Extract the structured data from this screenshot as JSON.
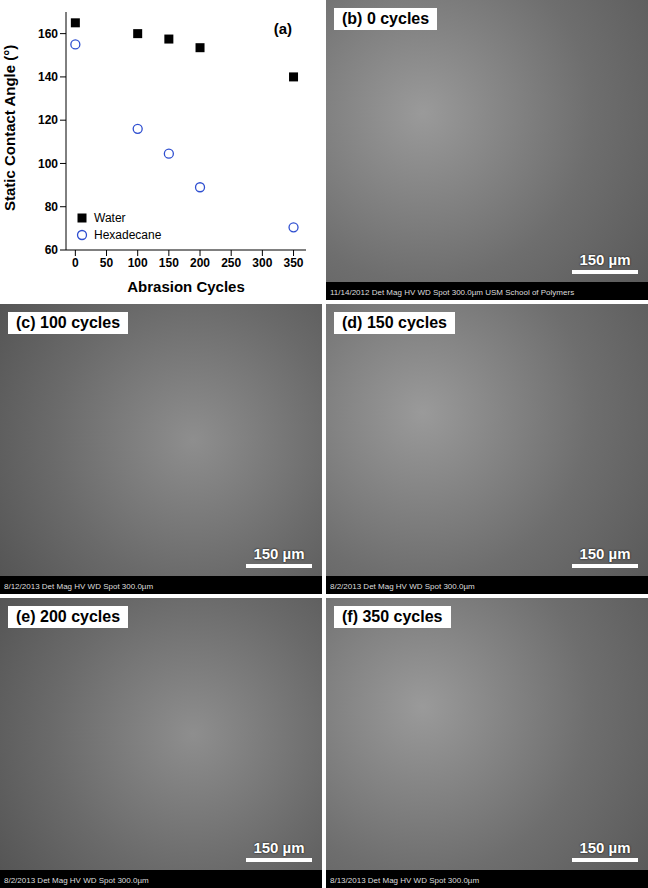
{
  "chart_data": {
    "type": "scatter",
    "panel": "(a)",
    "xlabel": "Abrasion Cycles",
    "ylabel": "Static Contact Angle (°)",
    "xlim": [
      -15,
      370
    ],
    "xticks": [
      0,
      50,
      100,
      150,
      200,
      250,
      300,
      350
    ],
    "ylim": [
      60,
      170
    ],
    "yticks": [
      60,
      80,
      100,
      120,
      140,
      160
    ],
    "legend": "lower left",
    "grid": false,
    "series": [
      {
        "name": "Water",
        "color": "#000000",
        "marker": "square",
        "x": [
          0,
          100,
          150,
          200,
          350
        ],
        "values": [
          165,
          160,
          157.5,
          153.5,
          140
        ]
      },
      {
        "name": "Hexadecane",
        "color": "#2f4fd0",
        "marker": "open_circle",
        "x": [
          0,
          100,
          150,
          200,
          350
        ],
        "values": [
          155,
          116,
          104.5,
          89,
          70.5
        ]
      }
    ]
  },
  "images": [
    {
      "label": "(b) 0 cycles",
      "scale_bar": "150 µm",
      "footer": "11/14/2012 Det Mag HV WD Spot 300.0µm USM School of Polymers"
    },
    {
      "label": "(c) 100 cycles",
      "scale_bar": "150 µm",
      "footer": "8/12/2013 Det Mag HV WD Spot 300.0µm"
    },
    {
      "label": "(d) 150 cycles",
      "scale_bar": "150 µm",
      "footer": "8/2/2013 Det Mag HV WD Spot 300.0µm"
    },
    {
      "label": "(e) 200 cycles",
      "scale_bar": "150 µm",
      "footer": "8/2/2013 Det Mag HV WD Spot 300.0µm"
    },
    {
      "label": "(f) 350 cycles",
      "scale_bar": "150 µm",
      "footer": "8/13/2013 Det Mag HV WD Spot 300.0µm"
    }
  ]
}
